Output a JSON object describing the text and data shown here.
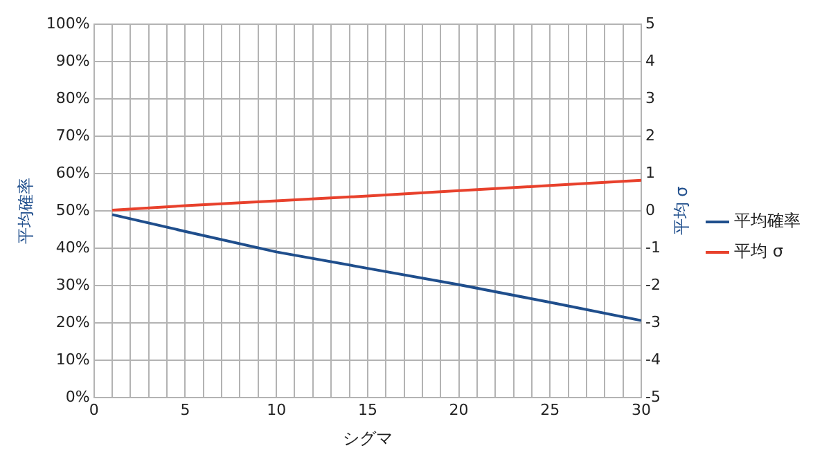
{
  "chart_data": {
    "type": "line",
    "xlabel": "シグマ",
    "ylabel": "平均確率",
    "y2label": "平均 σ",
    "x": [
      1,
      5,
      10,
      15,
      20,
      25,
      30
    ],
    "series": [
      {
        "name": "平均確率",
        "color": "#1f4e8c",
        "values": [
          49,
          44.5,
          39,
          34.6,
          30.2,
          25.5,
          20.6
        ]
      },
      {
        "name": "平均 σ",
        "color": "#e8412c",
        "axis": "y2",
        "values": [
          0.02,
          0.14,
          0.27,
          0.4,
          0.54,
          0.68,
          0.82
        ]
      }
    ],
    "xlim": [
      0,
      30
    ],
    "xticks": [
      0,
      {
        "value": 1,
        "label": null
      },
      {
        "value": 2,
        "label": null
      },
      {
        "value": 3,
        "label": null
      },
      {
        "value": 4,
        "label": null
      },
      5,
      {
        "value": 6,
        "label": null
      },
      {
        "value": 7,
        "label": null
      },
      {
        "value": 8,
        "label": null
      },
      {
        "value": 9,
        "label": null
      },
      10,
      {
        "value": 11,
        "label": null
      },
      {
        "value": 12,
        "label": null
      },
      {
        "value": 13,
        "label": null
      },
      {
        "value": 14,
        "label": null
      },
      15,
      {
        "value": 16,
        "label": null
      },
      {
        "value": 17,
        "label": null
      },
      {
        "value": 18,
        "label": null
      },
      {
        "value": 19,
        "label": null
      },
      20,
      {
        "value": 21,
        "label": null
      },
      {
        "value": 22,
        "label": null
      },
      {
        "value": 23,
        "label": null
      },
      {
        "value": 24,
        "label": null
      },
      25,
      {
        "value": 26,
        "label": null
      },
      {
        "value": 27,
        "label": null
      },
      {
        "value": 28,
        "label": null
      },
      {
        "value": 29,
        "label": null
      },
      30
    ],
    "ylim": [
      0,
      100
    ],
    "yticks": [
      {
        "value": 0,
        "label": "0%"
      },
      {
        "value": 10,
        "label": "10%"
      },
      {
        "value": 20,
        "label": "20%"
      },
      {
        "value": 30,
        "label": "30%"
      },
      {
        "value": 40,
        "label": "40%"
      },
      {
        "value": 50,
        "label": "50%"
      },
      {
        "value": 60,
        "label": "60%"
      },
      {
        "value": 70,
        "label": "70%"
      },
      {
        "value": 80,
        "label": "80%"
      },
      {
        "value": 90,
        "label": "90%"
      },
      {
        "value": 100,
        "label": "100%"
      }
    ],
    "y2lim": [
      -5,
      5
    ],
    "y2ticks": [
      -5,
      -4,
      -3,
      -2,
      -1,
      0,
      1,
      2,
      3,
      4,
      5
    ],
    "grid": true,
    "legend": "right",
    "marker": "none",
    "line_style": "solid"
  }
}
